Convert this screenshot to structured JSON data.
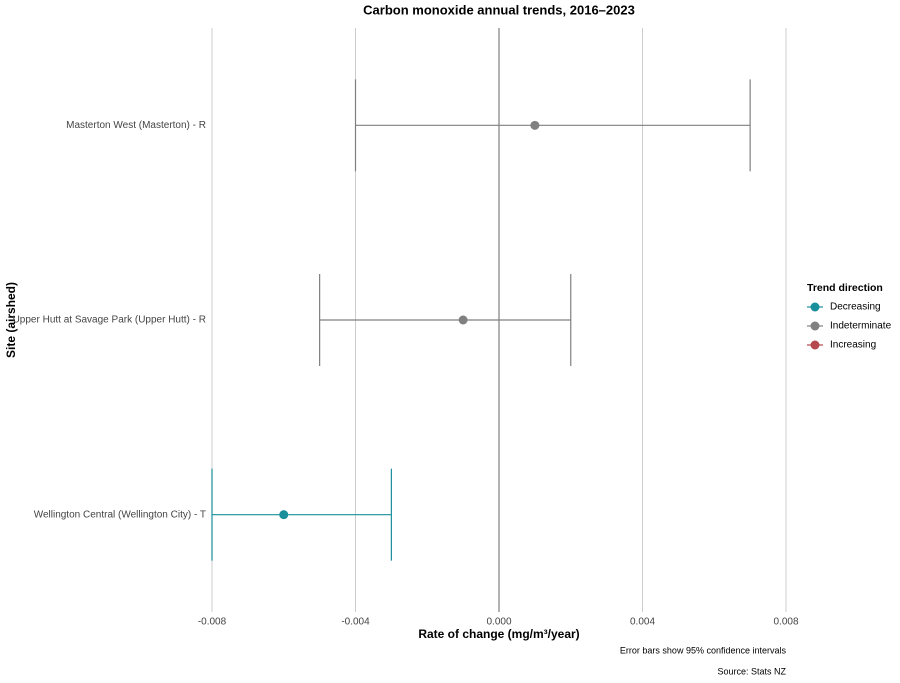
{
  "chart_data": {
    "type": "errorbar",
    "title": "Carbon monoxide annual trends, 2016–2023",
    "x_label": "Rate of change (mg/m³/year)",
    "y_label": "Site (airshed)",
    "legend_title": "Trend direction",
    "notes": [
      "Error bars show 95% confidence intervals",
      "Source: Stats NZ"
    ],
    "categories": [
      "Masterton West (Masterton) - R",
      "Upper Hutt at Savage Park (Upper Hutt) - R",
      "Wellington Central (Wellington City) - T"
    ],
    "series": [
      {
        "name": "Decreasing",
        "color": "#1a8f9c",
        "values": [
          null,
          null,
          -0.006
        ],
        "lower": [
          null,
          null,
          -0.008
        ],
        "upper": [
          null,
          null,
          -0.003
        ]
      },
      {
        "name": "Indeterminate",
        "color": "#808080",
        "values": [
          0.001,
          -0.001,
          null
        ],
        "lower": [
          -0.004,
          -0.005,
          null
        ],
        "upper": [
          0.007,
          0.002,
          null
        ]
      },
      {
        "name": "Increasing",
        "color": "#b5484d",
        "values": [
          null,
          null,
          null
        ],
        "lower": [
          null,
          null,
          null
        ],
        "upper": [
          null,
          null,
          null
        ]
      }
    ],
    "xlim": [
      -0.008,
      0.008
    ],
    "xticks": [
      -0.008,
      -0.004,
      {
        "value": 0,
        "label": "0.000"
      },
      0.004,
      0.008
    ],
    "grid": true,
    "legend_position": "right"
  }
}
